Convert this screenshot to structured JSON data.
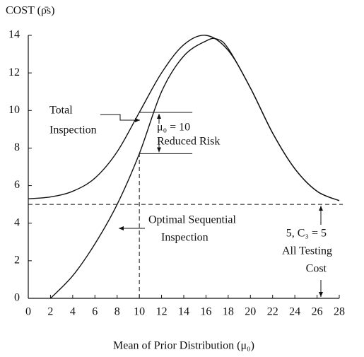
{
  "chart_data": {
    "type": "line",
    "y_label": "COST (ρ̄s)",
    "x_label": "Mean of Prior Distribution (μ₀)",
    "series": [
      {
        "name": "Total Inspection",
        "color": "#111111",
        "x": [
          0,
          2,
          4,
          6,
          8,
          10,
          12,
          14,
          16,
          18,
          20,
          22,
          24,
          26,
          28
        ],
        "values": [
          5.3,
          5.4,
          5.7,
          6.4,
          7.8,
          9.9,
          12.0,
          13.5,
          14.0,
          13.2,
          11.2,
          8.8,
          6.9,
          5.7,
          5.2
        ]
      },
      {
        "name": "Optimal Sequential Inspection",
        "color": "#111111",
        "x": [
          2,
          4,
          6,
          8,
          10,
          12,
          14,
          16,
          17,
          18,
          20,
          22,
          24,
          26,
          28
        ],
        "values": [
          0,
          1.2,
          2.9,
          5.0,
          7.7,
          11.0,
          12.9,
          13.7,
          13.8,
          13.3,
          11.2,
          8.8,
          6.9,
          5.7,
          5.2
        ]
      }
    ],
    "annotations": [
      "Total",
      "Inspection",
      "μ₀ = 10",
      "Reduced Risk",
      "Optimal Sequential",
      "Inspection",
      "5, C₃ = 5",
      "All Testing",
      "Cost"
    ],
    "reference_y": 5,
    "reference_x": 10,
    "xlim": [
      0,
      28
    ],
    "xticks": [
      0,
      2,
      4,
      6,
      8,
      10,
      12,
      14,
      16,
      18,
      20,
      22,
      24,
      26,
      28
    ],
    "ylim": [
      0,
      14
    ],
    "yticks": [
      0,
      2,
      4,
      6,
      8,
      10,
      12,
      14
    ]
  }
}
